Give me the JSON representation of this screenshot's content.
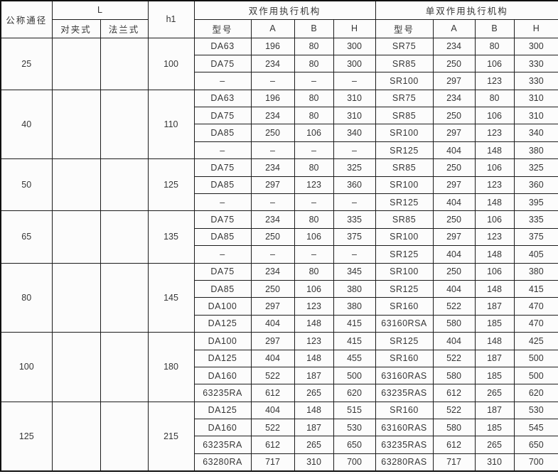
{
  "table": {
    "header": {
      "nominal_diameter": "公称通径",
      "L": "L",
      "wafer_type": "对夹式",
      "flange_type": "法兰式",
      "h1": "h1",
      "double_acting_group": "双作用执行机构",
      "single_double_acting_group": "单双作用执行机构",
      "model": "型号",
      "A": "A",
      "B": "B",
      "H": "H"
    },
    "empty_cell": "",
    "dash": "–",
    "groups": [
      {
        "dn": "25",
        "wafer": "",
        "flange": "",
        "h1": "100",
        "rows": [
          {
            "da": [
              "DA63",
              "196",
              "80",
              "300"
            ],
            "sr": [
              "SR75",
              "234",
              "80",
              "300"
            ]
          },
          {
            "da": [
              "DA75",
              "234",
              "80",
              "300"
            ],
            "sr": [
              "SR85",
              "250",
              "106",
              "330"
            ]
          },
          {
            "da": [
              "–",
              "–",
              "–",
              "–"
            ],
            "sr": [
              "SR100",
              "297",
              "123",
              "330"
            ]
          }
        ]
      },
      {
        "dn": "40",
        "wafer": "",
        "flange": "",
        "h1": "110",
        "rows": [
          {
            "da": [
              "DA63",
              "196",
              "80",
              "310"
            ],
            "sr": [
              "SR75",
              "234",
              "80",
              "310"
            ]
          },
          {
            "da": [
              "DA75",
              "234",
              "80",
              "310"
            ],
            "sr": [
              "SR85",
              "250",
              "106",
              "310"
            ]
          },
          {
            "da": [
              "DA85",
              "250",
              "106",
              "340"
            ],
            "sr": [
              "SR100",
              "297",
              "123",
              "340"
            ]
          },
          {
            "da": [
              "–",
              "–",
              "–",
              "–"
            ],
            "sr": [
              "SR125",
              "404",
              "148",
              "380"
            ]
          }
        ]
      },
      {
        "dn": "50",
        "wafer": "",
        "flange": "",
        "h1": "125",
        "rows": [
          {
            "da": [
              "DA75",
              "234",
              "80",
              "325"
            ],
            "sr": [
              "SR85",
              "250",
              "106",
              "325"
            ]
          },
          {
            "da": [
              "DA85",
              "297",
              "123",
              "360"
            ],
            "sr": [
              "SR100",
              "297",
              "123",
              "360"
            ]
          },
          {
            "da": [
              "–",
              "–",
              "–",
              "–"
            ],
            "sr": [
              "SR125",
              "404",
              "148",
              "395"
            ]
          }
        ]
      },
      {
        "dn": "65",
        "wafer": "",
        "flange": "",
        "h1": "135",
        "rows": [
          {
            "da": [
              "DA75",
              "234",
              "80",
              "335"
            ],
            "sr": [
              "SR85",
              "250",
              "106",
              "335"
            ]
          },
          {
            "da": [
              "DA85",
              "250",
              "106",
              "375"
            ],
            "sr": [
              "SR100",
              "297",
              "123",
              "375"
            ]
          },
          {
            "da": [
              "–",
              "–",
              "–",
              "–"
            ],
            "sr": [
              "SR125",
              "404",
              "148",
              "405"
            ]
          }
        ]
      },
      {
        "dn": "80",
        "wafer": "",
        "flange": "",
        "h1": "145",
        "rows": [
          {
            "da": [
              "DA75",
              "234",
              "80",
              "345"
            ],
            "sr": [
              "SR100",
              "250",
              "106",
              "380"
            ]
          },
          {
            "da": [
              "DA85",
              "250",
              "106",
              "380"
            ],
            "sr": [
              "SR125",
              "404",
              "148",
              "415"
            ]
          },
          {
            "da": [
              "DA100",
              "297",
              "123",
              "380"
            ],
            "sr": [
              "SR160",
              "522",
              "187",
              "470"
            ]
          },
          {
            "da": [
              "DA125",
              "404",
              "148",
              "415"
            ],
            "sr": [
              "63160RSA",
              "580",
              "185",
              "470"
            ]
          }
        ]
      },
      {
        "dn": "100",
        "wafer": "",
        "flange": "",
        "h1": "180",
        "rows": [
          {
            "da": [
              "DA100",
              "297",
              "123",
              "415"
            ],
            "sr": [
              "SR125",
              "404",
              "148",
              "425"
            ]
          },
          {
            "da": [
              "DA125",
              "404",
              "148",
              "455"
            ],
            "sr": [
              "SR160",
              "522",
              "187",
              "500"
            ]
          },
          {
            "da": [
              "DA160",
              "522",
              "187",
              "500"
            ],
            "sr": [
              "63160RAS",
              "580",
              "185",
              "500"
            ]
          },
          {
            "da": [
              "63235RA",
              "612",
              "265",
              "620"
            ],
            "sr": [
              "63235RAS",
              "612",
              "265",
              "620"
            ]
          }
        ]
      },
      {
        "dn": "125",
        "wafer": "",
        "flange": "",
        "h1": "215",
        "rows": [
          {
            "da": [
              "DA125",
              "404",
              "148",
              "515"
            ],
            "sr": [
              "SR160",
              "522",
              "187",
              "530"
            ]
          },
          {
            "da": [
              "DA160",
              "522",
              "187",
              "530"
            ],
            "sr": [
              "63160RAS",
              "580",
              "185",
              "545"
            ]
          },
          {
            "da": [
              "63235RA",
              "612",
              "265",
              "650"
            ],
            "sr": [
              "63235RAS",
              "612",
              "265",
              "650"
            ]
          },
          {
            "da": [
              "63280RA",
              "717",
              "310",
              "700"
            ],
            "sr": [
              "63280RAS",
              "717",
              "310",
              "700"
            ]
          }
        ]
      }
    ]
  }
}
